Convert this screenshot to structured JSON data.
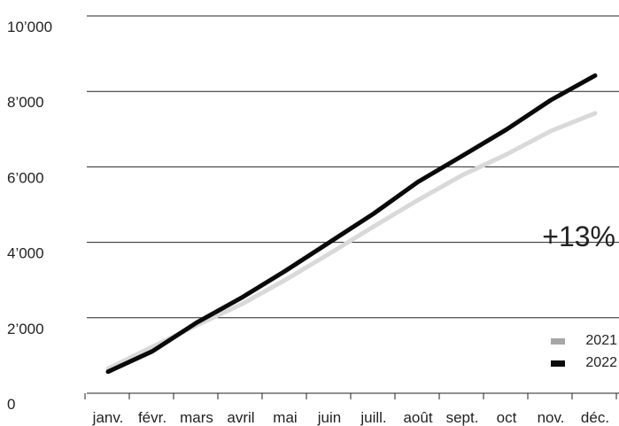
{
  "chart_data": {
    "type": "line",
    "categories": [
      "janv.",
      "févr.",
      "mars",
      "avril",
      "mai",
      "juin",
      "juill.",
      "août",
      "sept.",
      "oct",
      "nov.",
      "déc."
    ],
    "y_ticks": [
      "0",
      "2’000",
      "4’000",
      "6’000",
      "8’000",
      "10’000"
    ],
    "ylim": [
      0,
      10000
    ],
    "grid": "horizontal",
    "legend_position": "bottom-right",
    "annotation": "+13%",
    "series": [
      {
        "name": "2021",
        "color": "#d9d9d9",
        "legend_color": "#a6a6a6",
        "values": [
          650,
          1230,
          1800,
          2350,
          3000,
          3700,
          4420,
          5120,
          5780,
          6330,
          6950,
          7420
        ]
      },
      {
        "name": "2022",
        "color": "#0a0a0a",
        "legend_color": "#0a0a0a",
        "values": [
          570,
          1110,
          1870,
          2520,
          3240,
          4000,
          4760,
          5600,
          6290,
          6990,
          7770,
          8420
        ]
      }
    ]
  }
}
